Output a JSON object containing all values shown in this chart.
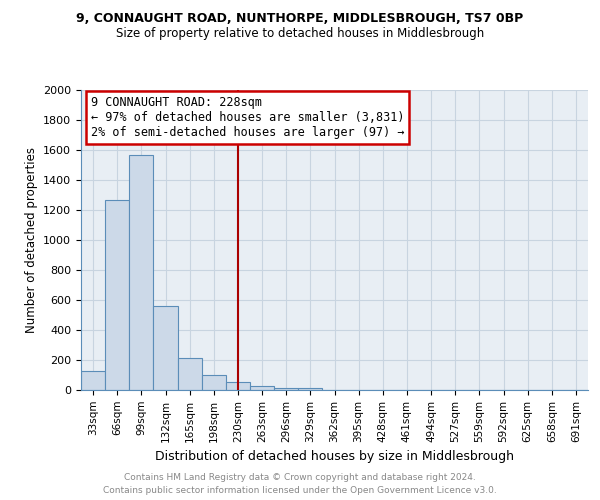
{
  "title1": "9, CONNAUGHT ROAD, NUNTHORPE, MIDDLESBROUGH, TS7 0BP",
  "title2": "Size of property relative to detached houses in Middlesbrough",
  "xlabel": "Distribution of detached houses by size in Middlesbrough",
  "ylabel": "Number of detached properties",
  "footnote1": "Contains HM Land Registry data © Crown copyright and database right 2024.",
  "footnote2": "Contains public sector information licensed under the Open Government Licence v3.0.",
  "annotation_title": "9 CONNAUGHT ROAD: 228sqm",
  "annotation_line1": "← 97% of detached houses are smaller (3,831)",
  "annotation_line2": "2% of semi-detached houses are larger (97) →",
  "categories": [
    "33sqm",
    "66sqm",
    "99sqm",
    "132sqm",
    "165sqm",
    "198sqm",
    "230sqm",
    "263sqm",
    "296sqm",
    "329sqm",
    "362sqm",
    "395sqm",
    "428sqm",
    "461sqm",
    "494sqm",
    "527sqm",
    "559sqm",
    "592sqm",
    "625sqm",
    "658sqm",
    "691sqm"
  ],
  "values": [
    130,
    1270,
    1570,
    560,
    215,
    100,
    55,
    30,
    15,
    15,
    0,
    0,
    0,
    0,
    0,
    0,
    0,
    0,
    0,
    0,
    0
  ],
  "bar_color": "#ccd9e8",
  "bar_edge_color": "#5b8db8",
  "bar_facecolor_alpha": 0.5,
  "vline_color": "#aa0000",
  "vline_x": 6.0,
  "annotation_box_color": "#cc0000",
  "ylim": [
    0,
    2000
  ],
  "yticks": [
    0,
    200,
    400,
    600,
    800,
    1000,
    1200,
    1400,
    1600,
    1800,
    2000
  ],
  "grid_color": "#c8d4e0",
  "plot_bg_color": "#e8eef4",
  "fig_bg_color": "#ffffff"
}
